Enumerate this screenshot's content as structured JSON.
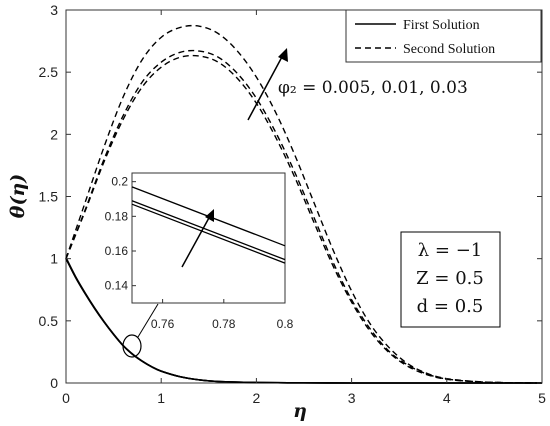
{
  "chart_data": {
    "type": "line",
    "xlabel": "η",
    "ylabel": "θ(η)",
    "xlim": [
      0,
      5
    ],
    "ylim": [
      0,
      3
    ],
    "xticks": [
      "0",
      "1",
      "2",
      "3",
      "4",
      "5"
    ],
    "yticks": [
      "0",
      "0.5",
      "1",
      "1.5",
      "2",
      "2.5",
      "3"
    ],
    "legend": {
      "position": "top-right",
      "entries": [
        {
          "label": "First Solution",
          "style": "solid"
        },
        {
          "label": "Second Solution",
          "style": "dashed"
        }
      ]
    },
    "annotation": "φ₂ = 0.005, 0.01, 0.03",
    "param_box": [
      "λ = −1",
      "Z = 0.5",
      "d = 0.5"
    ],
    "first_solution": {
      "style": "solid",
      "x": [
        0,
        0.1,
        0.2,
        0.3,
        0.4,
        0.5,
        0.6,
        0.7,
        0.8,
        0.9,
        1.0,
        1.2,
        1.4,
        1.6,
        2.0,
        2.5,
        3,
        3.5,
        4,
        5
      ],
      "y": [
        1.0,
        0.85,
        0.72,
        0.6,
        0.49,
        0.39,
        0.3,
        0.23,
        0.175,
        0.13,
        0.095,
        0.05,
        0.025,
        0.012,
        0.004,
        0.001,
        0,
        0,
        0,
        0
      ],
      "series": [
        {
          "name": "φ₂ = 0.005",
          "offset": 0
        },
        {
          "name": "φ₂ = 0.01",
          "offset": 0.002
        },
        {
          "name": "φ₂ = 0.03",
          "offset": 0.008
        }
      ]
    },
    "second_solution": {
      "style": "dashed",
      "x": [
        0,
        0.2,
        0.4,
        0.6,
        0.8,
        1.0,
        1.2,
        1.4,
        1.6,
        1.8,
        2.0,
        2.2,
        2.4,
        2.6,
        2.8,
        3.0,
        3.2,
        3.4,
        3.6,
        3.8,
        4.0,
        4.3,
        4.6,
        5.0
      ],
      "series": [
        {
          "name": "φ₂ = 0.005",
          "y": [
            1.0,
            1.38,
            1.78,
            2.12,
            2.38,
            2.54,
            2.62,
            2.63,
            2.58,
            2.45,
            2.25,
            1.98,
            1.66,
            1.3,
            0.95,
            0.65,
            0.41,
            0.24,
            0.13,
            0.065,
            0.03,
            0.01,
            0.003,
            0
          ]
        },
        {
          "name": "φ₂ = 0.01",
          "y": [
            1.0,
            1.39,
            1.8,
            2.15,
            2.42,
            2.58,
            2.66,
            2.67,
            2.62,
            2.49,
            2.29,
            2.02,
            1.7,
            1.34,
            0.98,
            0.67,
            0.43,
            0.25,
            0.14,
            0.07,
            0.032,
            0.011,
            0.003,
            0
          ]
        },
        {
          "name": "φ₂ = 0.03",
          "y": [
            1.0,
            1.45,
            1.9,
            2.3,
            2.6,
            2.78,
            2.86,
            2.87,
            2.81,
            2.67,
            2.46,
            2.18,
            1.84,
            1.46,
            1.08,
            0.74,
            0.47,
            0.28,
            0.15,
            0.075,
            0.035,
            0.012,
            0.003,
            0
          ]
        }
      ]
    },
    "inset": {
      "xlim": [
        0.75,
        0.8
      ],
      "ylim": [
        0.13,
        0.205
      ],
      "xticks": [
        "0.76",
        "0.78",
        "0.8"
      ],
      "yticks": [
        "0.2",
        "0.18",
        "0.16",
        "0.14"
      ],
      "lines": [
        {
          "name": "φ₂ = 0.005",
          "y0": 0.187,
          "y1": 0.153
        },
        {
          "name": "φ₂ = 0.01",
          "y0": 0.189,
          "y1": 0.155
        },
        {
          "name": "φ₂ = 0.03",
          "y0": 0.197,
          "y1": 0.163
        }
      ]
    }
  }
}
